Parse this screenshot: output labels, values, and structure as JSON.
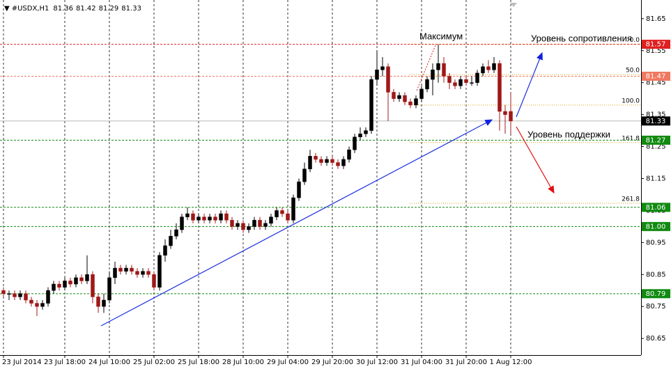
{
  "chart_data": {
    "type": "candlestick",
    "symbol": "#USDX,H1",
    "open": [
      80.8,
      80.79,
      80.79,
      80.78,
      80.79,
      80.77,
      80.76,
      80.75,
      80.76,
      80.8,
      80.82,
      80.81,
      80.83,
      80.82,
      80.84,
      80.83,
      80.85,
      80.78,
      80.75,
      80.77,
      80.84,
      80.87,
      80.86,
      80.87,
      80.86,
      80.85,
      80.86,
      80.85,
      80.81,
      80.91,
      80.94,
      80.97,
      80.99,
      81.03,
      81.04,
      81.02,
      81.03,
      81.02,
      81.03,
      81.02,
      81.04,
      81.02,
      81.0,
      81.01,
      80.99,
      81.0,
      81.02,
      81.0,
      81.01,
      81.03,
      81.05,
      81.04,
      81.02,
      81.09,
      81.14,
      81.18,
      81.22,
      81.21,
      81.2,
      81.21,
      81.2,
      81.19,
      81.21,
      81.24,
      81.28,
      81.29,
      81.3,
      81.46,
      81.49,
      81.5,
      81.42,
      81.4,
      81.41,
      81.39,
      81.38,
      81.4,
      81.43,
      81.46,
      81.49,
      81.51,
      81.47,
      81.45,
      81.44,
      81.46,
      81.45,
      81.45,
      81.48,
      81.5,
      81.49,
      81.51,
      81.36,
      81.36
    ],
    "high": [
      80.81,
      80.8,
      80.8,
      80.8,
      80.8,
      80.78,
      80.77,
      80.77,
      80.81,
      80.83,
      80.83,
      80.84,
      80.84,
      80.85,
      80.85,
      80.91,
      80.86,
      80.79,
      80.79,
      80.86,
      80.89,
      80.88,
      80.88,
      80.88,
      80.87,
      80.87,
      80.87,
      80.86,
      80.92,
      80.96,
      80.99,
      81.01,
      81.04,
      81.06,
      81.05,
      81.04,
      81.04,
      81.04,
      81.04,
      81.05,
      81.05,
      81.03,
      81.02,
      81.02,
      81.01,
      81.03,
      81.03,
      81.02,
      81.04,
      81.06,
      81.06,
      81.05,
      81.1,
      81.15,
      81.2,
      81.24,
      81.23,
      81.22,
      81.22,
      81.22,
      81.21,
      81.22,
      81.25,
      81.29,
      81.31,
      81.31,
      81.47,
      81.55,
      81.53,
      81.51,
      81.43,
      81.42,
      81.42,
      81.4,
      81.41,
      81.44,
      81.47,
      81.51,
      81.57,
      81.53,
      81.48,
      81.46,
      81.47,
      81.47,
      81.47,
      81.49,
      81.51,
      81.52,
      81.53,
      81.52,
      81.38,
      81.42
    ],
    "low": [
      80.78,
      80.77,
      80.77,
      80.77,
      80.76,
      80.75,
      80.72,
      80.74,
      80.75,
      80.79,
      80.8,
      80.8,
      80.81,
      80.81,
      80.82,
      80.82,
      80.76,
      80.73,
      80.73,
      80.76,
      80.82,
      80.85,
      80.85,
      80.85,
      80.84,
      80.84,
      80.84,
      80.8,
      80.8,
      80.89,
      80.93,
      80.96,
      80.98,
      81.02,
      81.01,
      81.01,
      81.01,
      81.01,
      81.01,
      81.01,
      81.01,
      80.99,
      80.99,
      80.98,
      80.98,
      80.99,
      80.99,
      80.99,
      81.0,
      81.02,
      81.03,
      81.01,
      81.01,
      81.08,
      81.13,
      81.17,
      81.2,
      81.19,
      81.19,
      81.19,
      81.18,
      81.18,
      81.2,
      81.23,
      81.27,
      81.28,
      81.29,
      81.44,
      81.47,
      81.33,
      81.39,
      81.39,
      81.38,
      81.37,
      81.37,
      81.39,
      81.42,
      81.41,
      81.45,
      81.45,
      81.43,
      81.43,
      81.43,
      81.44,
      81.44,
      81.44,
      81.47,
      81.48,
      81.48,
      81.3,
      81.29,
      81.29
    ],
    "close": [
      80.79,
      80.79,
      80.78,
      80.79,
      80.77,
      80.76,
      80.75,
      80.76,
      80.8,
      80.82,
      80.81,
      80.83,
      80.82,
      80.84,
      80.83,
      80.85,
      80.78,
      80.75,
      80.77,
      80.84,
      80.87,
      80.86,
      80.87,
      80.86,
      80.85,
      80.86,
      80.85,
      80.81,
      80.91,
      80.94,
      80.97,
      80.99,
      81.03,
      81.04,
      81.02,
      81.03,
      81.02,
      81.03,
      81.02,
      81.04,
      81.02,
      81.0,
      81.01,
      80.99,
      81.0,
      81.02,
      81.0,
      81.01,
      81.03,
      81.05,
      81.04,
      81.02,
      81.09,
      81.14,
      81.18,
      81.22,
      81.21,
      81.2,
      81.21,
      81.2,
      81.19,
      81.21,
      81.24,
      81.28,
      81.29,
      81.3,
      81.46,
      81.49,
      81.5,
      81.42,
      81.4,
      81.41,
      81.39,
      81.38,
      81.4,
      81.43,
      81.46,
      81.49,
      81.51,
      81.47,
      81.45,
      81.44,
      81.46,
      81.45,
      81.45,
      81.48,
      81.5,
      81.49,
      81.51,
      81.36,
      81.35,
      81.33
    ],
    "up_color": "#000000",
    "down_color": "#a01818",
    "ylim": [
      80.598,
      81.691
    ],
    "yticks": [
      81.65,
      81.55,
      81.45,
      81.35,
      81.25,
      81.15,
      81.05,
      80.95,
      80.85,
      80.75,
      80.65
    ],
    "xticks": [
      {
        "value": 0,
        "label": "23 Jul 2014"
      },
      {
        "value": 11,
        "label": "23 Jul 18:00"
      },
      {
        "value": 19,
        "label": "24 Jul 10:00"
      },
      {
        "value": 27,
        "label": "25 Jul 02:00"
      },
      {
        "value": 35,
        "label": "25 Jul 18:00"
      },
      {
        "value": 43,
        "label": "28 Jul 10:00"
      },
      {
        "value": 51,
        "label": "29 Jul 04:00"
      },
      {
        "value": 59,
        "label": "29 Jul 20:00"
      },
      {
        "value": 67,
        "label": "30 Jul 12:00"
      },
      {
        "value": 75,
        "label": "31 Jul 04:00"
      },
      {
        "value": 83,
        "label": "31 Jul 20:00"
      },
      {
        "value": 91,
        "label": "1 Aug 12:00"
      }
    ],
    "grid": true,
    "levels": [
      {
        "value": 81.57,
        "color": "#e02020"
      },
      {
        "value": 81.47,
        "color": "#f07860"
      },
      {
        "value": 81.27,
        "color": "#108a10"
      },
      {
        "value": 81.06,
        "color": "#108a10"
      },
      {
        "value": 81,
        "label": "81.00",
        "color": "#108a10"
      },
      {
        "value": 80.79,
        "color": "#108a10"
      }
    ],
    "current_price_color": "#000000",
    "fibonacci": {
      "high": 81.57,
      "low": 81.38,
      "color": "#d9a21b",
      "levels": [
        {
          "value": 0,
          "label": "0.0"
        },
        {
          "value": 50,
          "label": "50.0"
        },
        {
          "value": 100,
          "label": "100.0"
        },
        {
          "value": 161.8,
          "label": "161.8"
        },
        {
          "value": 261.8,
          "label": "261.8"
        }
      ]
    },
    "annotations": [
      "Максимум",
      "Уровень сопротивления",
      "Уровень поддержки"
    ]
  }
}
